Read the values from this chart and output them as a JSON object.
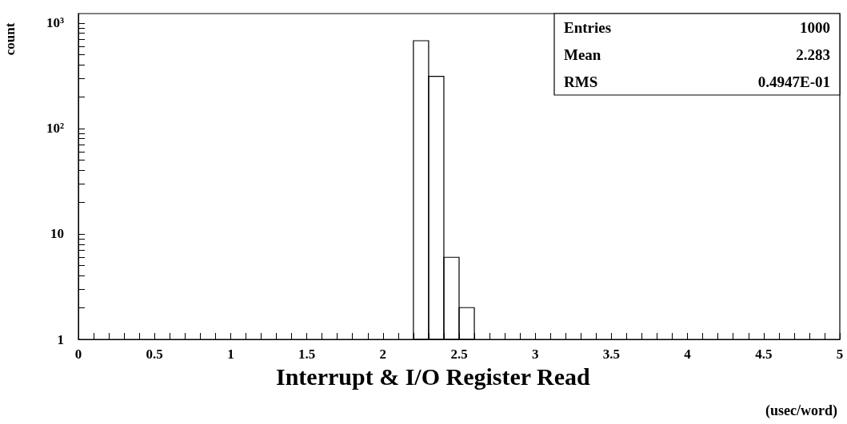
{
  "chart_data": {
    "type": "histogram",
    "xlabel": "Interrupt & I/O Register Read",
    "ylabel": "count",
    "bins": [
      2.2,
      2.3,
      2.4,
      2.5,
      2.6
    ],
    "values": [
      680,
      312,
      6,
      2
    ],
    "color": "#000000",
    "xlim": [
      0,
      5
    ],
    "xticks": [
      0,
      {
        "value": 0.1,
        "label": null
      },
      {
        "value": 0.2,
        "label": null
      },
      {
        "value": 0.3,
        "label": null
      },
      {
        "value": 0.4,
        "label": null
      },
      0.5,
      {
        "value": 0.6,
        "label": null
      },
      {
        "value": 0.7,
        "label": null
      },
      {
        "value": 0.8,
        "label": null
      },
      {
        "value": 0.9,
        "label": null
      },
      1,
      {
        "value": 1.1,
        "label": null
      },
      {
        "value": 1.2,
        "label": null
      },
      {
        "value": 1.3,
        "label": null
      },
      {
        "value": 1.4,
        "label": null
      },
      1.5,
      {
        "value": 1.6,
        "label": null
      },
      {
        "value": 1.7,
        "label": null
      },
      {
        "value": 1.8,
        "label": null
      },
      {
        "value": 1.9,
        "label": null
      },
      2,
      {
        "value": 2.1,
        "label": null
      },
      {
        "value": 2.2,
        "label": null
      },
      {
        "value": 2.3,
        "label": null
      },
      {
        "value": 2.4,
        "label": null
      },
      2.5,
      {
        "value": 2.6,
        "label": null
      },
      {
        "value": 2.7,
        "label": null
      },
      {
        "value": 2.8,
        "label": null
      },
      {
        "value": 2.9,
        "label": null
      },
      3,
      {
        "value": 3.1,
        "label": null
      },
      {
        "value": 3.2,
        "label": null
      },
      {
        "value": 3.3,
        "label": null
      },
      {
        "value": 3.4,
        "label": null
      },
      3.5,
      {
        "value": 3.6,
        "label": null
      },
      {
        "value": 3.7,
        "label": null
      },
      {
        "value": 3.8,
        "label": null
      },
      {
        "value": 3.9,
        "label": null
      },
      4,
      {
        "value": 4.1,
        "label": null
      },
      {
        "value": 4.2,
        "label": null
      },
      {
        "value": 4.3,
        "label": null
      },
      {
        "value": 4.4,
        "label": null
      },
      4.5,
      {
        "value": 4.6,
        "label": null
      },
      {
        "value": 4.7,
        "label": null
      },
      {
        "value": 4.8,
        "label": null
      },
      {
        "value": 4.9,
        "label": null
      },
      5
    ],
    "log": "y",
    "ylim": [
      1,
      1230
    ],
    "yticks": [
      1,
      {
        "value": 2,
        "label": null
      },
      {
        "value": 3,
        "label": null
      },
      {
        "value": 4,
        "label": null
      },
      {
        "value": 5,
        "label": null
      },
      {
        "value": 6,
        "label": null
      },
      {
        "value": 7,
        "label": null
      },
      {
        "value": 8,
        "label": null
      },
      {
        "value": 9,
        "label": null
      },
      10,
      {
        "value": 20,
        "label": null
      },
      {
        "value": 30,
        "label": null
      },
      {
        "value": 40,
        "label": null
      },
      {
        "value": 50,
        "label": null
      },
      {
        "value": 60,
        "label": null
      },
      {
        "value": 70,
        "label": null
      },
      {
        "value": 80,
        "label": null
      },
      {
        "value": 90,
        "label": null
      },
      {
        "value": 100,
        "label": "10²"
      },
      {
        "value": 200,
        "label": null
      },
      {
        "value": 300,
        "label": null
      },
      {
        "value": 400,
        "label": null
      },
      {
        "value": 500,
        "label": null
      },
      {
        "value": 600,
        "label": null
      },
      {
        "value": 700,
        "label": null
      },
      {
        "value": 800,
        "label": null
      },
      {
        "value": 900,
        "label": null
      },
      {
        "value": 1000,
        "label": "10³"
      }
    ],
    "annotations": [
      "Entries",
      "1000",
      "Mean",
      "2.283",
      "RMS",
      "0.4947E-01",
      "(usec/word)"
    ]
  }
}
